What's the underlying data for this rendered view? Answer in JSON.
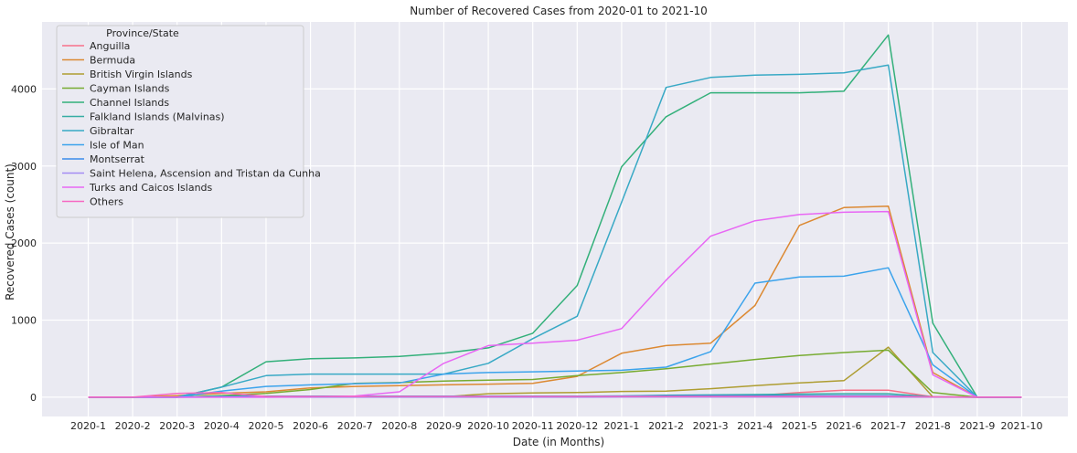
{
  "chart_data": {
    "type": "line",
    "title": "Number of Recovered Cases from 2020-01 to 2021-10",
    "xlabel": "Date (in Months)",
    "ylabel": "Recovered Cases (count)",
    "ylim": [
      -250,
      4870
    ],
    "yticks": [
      0,
      1000,
      2000,
      3000,
      4000
    ],
    "x": [
      "2020-1",
      "2020-2",
      "2020-3",
      "2020-4",
      "2020-5",
      "2020-6",
      "2020-7",
      "2020-8",
      "2020-9",
      "2020-10",
      "2020-11",
      "2020-12",
      "2021-1",
      "2021-2",
      "2021-3",
      "2021-4",
      "2021-5",
      "2021-6",
      "2021-7",
      "2021-8",
      "2021-9",
      "2021-10"
    ],
    "grid": true,
    "background": "#eaeaf2",
    "legend": {
      "title": "Province/State",
      "placement": "top-left"
    },
    "series": [
      {
        "name": "Anguilla",
        "color": "#f77189",
        "values": [
          0,
          0,
          0,
          3,
          3,
          3,
          3,
          3,
          3,
          3,
          3,
          5,
          10,
          15,
          15,
          20,
          60,
          90,
          90,
          5,
          0,
          0
        ]
      },
      {
        "name": "Bermuda",
        "color": "#dc8932",
        "values": [
          0,
          0,
          20,
          50,
          70,
          120,
          140,
          150,
          160,
          170,
          180,
          270,
          570,
          670,
          700,
          1190,
          2230,
          2460,
          2480,
          320,
          0,
          0
        ]
      },
      {
        "name": "British Virgin Islands",
        "color": "#ae9d31",
        "values": [
          0,
          0,
          3,
          5,
          5,
          5,
          5,
          5,
          5,
          45,
          55,
          60,
          75,
          80,
          110,
          150,
          185,
          215,
          650,
          5,
          0,
          0
        ]
      },
      {
        "name": "Cayman Islands",
        "color": "#77ab31",
        "values": [
          0,
          0,
          0,
          20,
          50,
          100,
          180,
          190,
          210,
          220,
          230,
          280,
          320,
          370,
          430,
          490,
          540,
          580,
          610,
          60,
          0,
          0
        ]
      },
      {
        "name": "Channel Islands",
        "color": "#33b07a",
        "values": [
          0,
          0,
          0,
          130,
          460,
          500,
          510,
          530,
          570,
          640,
          830,
          1450,
          2990,
          3640,
          3950,
          3950,
          3950,
          3970,
          4700,
          960,
          0,
          0
        ]
      },
      {
        "name": "Falkland Islands (Malvinas)",
        "color": "#36ada4",
        "values": [
          0,
          0,
          0,
          13,
          13,
          13,
          13,
          13,
          13,
          13,
          13,
          13,
          15,
          25,
          30,
          35,
          40,
          45,
          45,
          5,
          0,
          0
        ]
      },
      {
        "name": "Gibraltar",
        "color": "#38a9c5",
        "values": [
          0,
          0,
          0,
          130,
          280,
          300,
          300,
          300,
          300,
          440,
          760,
          1050,
          2530,
          4020,
          4150,
          4180,
          4190,
          4210,
          4310,
          580,
          0,
          0
        ]
      },
      {
        "name": "Isle of Man",
        "color": "#3ba3ec",
        "values": [
          0,
          0,
          0,
          80,
          140,
          160,
          175,
          185,
          300,
          320,
          330,
          340,
          350,
          390,
          590,
          1480,
          1560,
          1570,
          1680,
          420,
          0,
          0
        ]
      },
      {
        "name": "Montserrat",
        "color": "#3b8bea",
        "values": [
          0,
          0,
          0,
          5,
          10,
          12,
          12,
          12,
          12,
          12,
          12,
          12,
          15,
          18,
          20,
          20,
          20,
          20,
          20,
          3,
          0,
          0
        ]
      },
      {
        "name": "Saint Helena, Ascension and Tristan da Cunha",
        "color": "#a48cf4",
        "values": [
          0,
          0,
          0,
          0,
          0,
          0,
          0,
          0,
          0,
          0,
          0,
          0,
          2,
          2,
          2,
          2,
          2,
          2,
          2,
          0,
          0,
          0
        ]
      },
      {
        "name": "Turks and Caicos Islands",
        "color": "#e867f4",
        "values": [
          0,
          0,
          0,
          0,
          0,
          5,
          15,
          70,
          440,
          670,
          700,
          740,
          890,
          1520,
          2090,
          2290,
          2370,
          2400,
          2410,
          290,
          0,
          0
        ]
      },
      {
        "name": "Others",
        "color": "#f668c2",
        "values": [
          0,
          0,
          50,
          60,
          10,
          10,
          10,
          10,
          10,
          10,
          10,
          10,
          10,
          10,
          10,
          10,
          10,
          10,
          10,
          5,
          0,
          0
        ]
      }
    ]
  }
}
